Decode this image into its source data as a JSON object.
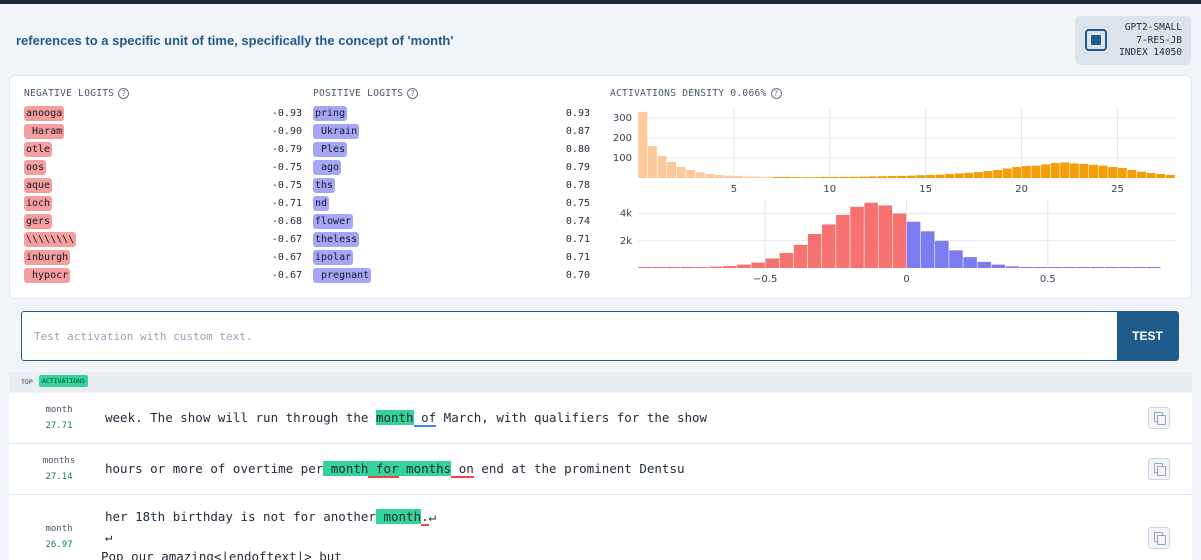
{
  "header": {
    "description": "references to a specific unit of time, specifically the concept of 'month'",
    "model": "GPT2-SMALL",
    "layer": "7-RES-JB",
    "index": "INDEX 14050"
  },
  "negative_logits": {
    "title": "NEGATIVE LOGITS",
    "rows": [
      {
        "token": "anooga",
        "value": "-0.93"
      },
      {
        "token": " Haram",
        "value": "-0.90"
      },
      {
        "token": "otle",
        "value": "-0.79"
      },
      {
        "token": "oos",
        "value": "-0.75"
      },
      {
        "token": "aque",
        "value": "-0.75"
      },
      {
        "token": "ioch",
        "value": "-0.71"
      },
      {
        "token": "gers",
        "value": "-0.68"
      },
      {
        "token": "\\\\\\\\\\\\\\\\",
        "value": "-0.67"
      },
      {
        "token": "inburgh",
        "value": "-0.67"
      },
      {
        "token": " hypocr",
        "value": "-0.67"
      }
    ]
  },
  "positive_logits": {
    "title": "POSITIVE LOGITS",
    "rows": [
      {
        "token": "pring",
        "value": "0.93"
      },
      {
        "token": " Ukrain",
        "value": "0.87"
      },
      {
        "token": " Ples",
        "value": "0.80"
      },
      {
        "token": " ago",
        "value": "0.79"
      },
      {
        "token": "ths",
        "value": "0.78"
      },
      {
        "token": "nd",
        "value": "0.75"
      },
      {
        "token": "flower",
        "value": "0.74"
      },
      {
        "token": "theless",
        "value": "0.71"
      },
      {
        "token": "ipolar",
        "value": "0.71"
      },
      {
        "token": " pregnant",
        "value": "0.70"
      }
    ]
  },
  "activations_density": {
    "title": "ACTIVATIONS DENSITY 0.066%"
  },
  "chart_data": [
    {
      "type": "bar",
      "y_ticks": [
        100,
        200,
        300
      ],
      "x_ticks": [
        5,
        10,
        15,
        20,
        25
      ],
      "xlim": [
        0,
        28
      ],
      "ylim": [
        0,
        350
      ],
      "bin_width": 0.5,
      "values": [
        330,
        160,
        110,
        80,
        55,
        40,
        28,
        20,
        15,
        12,
        10,
        8,
        7,
        6,
        5,
        5,
        4,
        4,
        4,
        5,
        5,
        6,
        6,
        7,
        8,
        9,
        10,
        11,
        12,
        14,
        15,
        17,
        20,
        23,
        26,
        30,
        35,
        40,
        48,
        55,
        60,
        62,
        68,
        75,
        78,
        73,
        70,
        66,
        62,
        55,
        50,
        40,
        32,
        25,
        20,
        15
      ],
      "colors": {
        "low": "#fdc99a",
        "high": "#f59e0b"
      }
    },
    {
      "type": "bar",
      "y_ticks": [
        "2k",
        "4k"
      ],
      "x_ticks": [
        -0.5,
        0,
        0.5
      ],
      "xlim": [
        -0.95,
        0.95
      ],
      "ylim": [
        0,
        5000
      ],
      "x_start": -0.95,
      "bin_width": 0.05,
      "values": [
        5,
        10,
        20,
        30,
        60,
        100,
        150,
        250,
        400,
        700,
        1100,
        1700,
        2500,
        3200,
        3900,
        4500,
        4800,
        4600,
        4000,
        3400,
        2700,
        2000,
        1300,
        800,
        450,
        250,
        120,
        60,
        30,
        15,
        8,
        5,
        3,
        2,
        1,
        1,
        1,
        0
      ],
      "colors": {
        "negative": "#f87171",
        "positive": "#7c7cf0"
      }
    }
  ],
  "test": {
    "placeholder": "Test activation with custom text.",
    "button": "TEST"
  },
  "top_activations": {
    "label": "TOP",
    "badge": "ACTIVATIONS",
    "items": [
      {
        "token": "month",
        "value": "27.71",
        "segments": [
          {
            "text": "week. The show will run through the ",
            "style": ""
          },
          {
            "text": "month",
            "style": "hl"
          },
          {
            "text": " of",
            "style": "ul-blue"
          },
          {
            "text": " March, with qualifiers for the show",
            "style": ""
          }
        ]
      },
      {
        "token": "months",
        "value": "27.14",
        "segments": [
          {
            "text": "hours or more of overtime per",
            "style": ""
          },
          {
            "text": " month",
            "style": "hl"
          },
          {
            "text": " for",
            "style": "hl ul-red"
          },
          {
            "text": " months",
            "style": "hl"
          },
          {
            "text": " on",
            "style": "ul-red"
          },
          {
            "text": " end at the prominent Dentsu",
            "style": ""
          }
        ]
      },
      {
        "token": "month",
        "value": "26.97",
        "segments": [
          {
            "text": "her 18th birthday is not for another",
            "style": ""
          },
          {
            "text": " month",
            "style": "hl"
          },
          {
            "text": ".",
            "style": "ul-red"
          },
          {
            "text": "↵",
            "style": ""
          }
        ],
        "extra_lines": [
          "↵",
          "Pop our amazing<|endoftext|> but"
        ]
      }
    ]
  }
}
